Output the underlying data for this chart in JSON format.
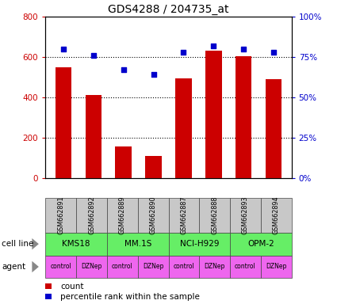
{
  "title": "GDS4288 / 204735_at",
  "samples": [
    "GSM662891",
    "GSM662892",
    "GSM662889",
    "GSM662890",
    "GSM662887",
    "GSM662888",
    "GSM662893",
    "GSM662894"
  ],
  "counts": [
    550,
    410,
    155,
    110,
    495,
    630,
    605,
    490
  ],
  "percentile_ranks": [
    80,
    76,
    67,
    64,
    78,
    82,
    80,
    78
  ],
  "cell_line_labels": [
    "KMS18",
    "MM.1S",
    "NCI-H929",
    "OPM-2"
  ],
  "agents": [
    "control",
    "DZNep",
    "control",
    "DZNep",
    "control",
    "DZNep",
    "control",
    "DZNep"
  ],
  "bar_color": "#CC0000",
  "dot_color": "#0000CC",
  "ylim_left": [
    0,
    800
  ],
  "ylim_right": [
    0,
    100
  ],
  "yticks_left": [
    0,
    200,
    400,
    600,
    800
  ],
  "yticks_right": [
    0,
    25,
    50,
    75,
    100
  ],
  "ytick_labels_right": [
    "0%",
    "25%",
    "50%",
    "75%",
    "100%"
  ],
  "sample_box_color": "#C8C8C8",
  "cell_line_color": "#66EE66",
  "agent_color": "#EE66EE",
  "label_color_left": "#CC0000",
  "label_color_right": "#0000CC"
}
